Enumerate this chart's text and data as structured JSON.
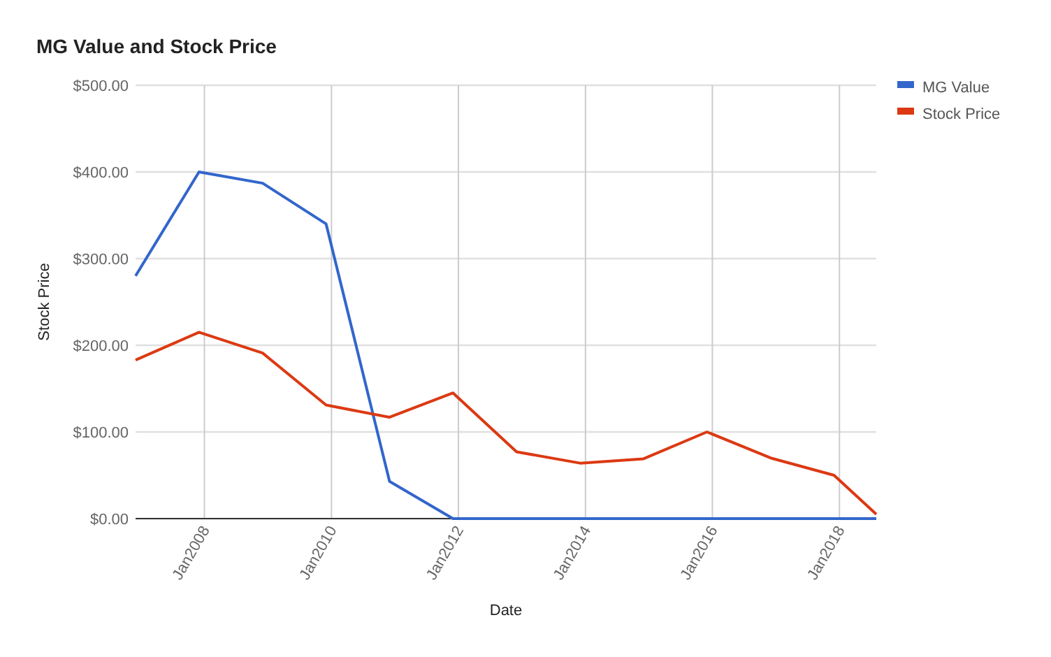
{
  "chart_data": {
    "type": "line",
    "title": "MG Value and Stock Price",
    "xlabel": "Date",
    "ylabel": "Stock Price",
    "x": [
      "2006-12",
      "2007-12",
      "2008-12",
      "2009-12",
      "2010-12",
      "2011-12",
      "2012-12",
      "2013-12",
      "2014-12",
      "2015-12",
      "2016-12",
      "2017-12",
      "2018-08"
    ],
    "series": [
      {
        "name": "MG Value",
        "color": "#3366cc",
        "values": [
          280,
          400,
          387,
          340,
          43,
          0,
          0,
          0,
          0,
          0,
          0,
          0,
          0
        ]
      },
      {
        "name": "Stock Price",
        "color": "#dc3912",
        "values": [
          183,
          215,
          191,
          131,
          117,
          145,
          77,
          64,
          69,
          100,
          70,
          50,
          5
        ]
      }
    ],
    "xlim": [
      "2006-12",
      "2018-08"
    ],
    "xticks": [
      {
        "value": "2008-01",
        "label": "Jan2008"
      },
      {
        "value": "2010-01",
        "label": "Jan2010"
      },
      {
        "value": "2012-01",
        "label": "Jan2012"
      },
      {
        "value": "2014-01",
        "label": "Jan2014"
      },
      {
        "value": "2016-01",
        "label": "Jan2016"
      },
      {
        "value": "2018-01",
        "label": "Jan2018"
      }
    ],
    "ylim": [
      0,
      500
    ],
    "yticks": [
      {
        "value": 0,
        "label": "$0.00"
      },
      {
        "value": 100,
        "label": "$100.00"
      },
      {
        "value": 200,
        "label": "$200.00"
      },
      {
        "value": 300,
        "label": "$300.00"
      },
      {
        "value": 400,
        "label": "$400.00"
      },
      {
        "value": 500,
        "label": "$500.00"
      }
    ],
    "grid": true,
    "legend": "right",
    "marker": "none",
    "line_style": "solid"
  }
}
